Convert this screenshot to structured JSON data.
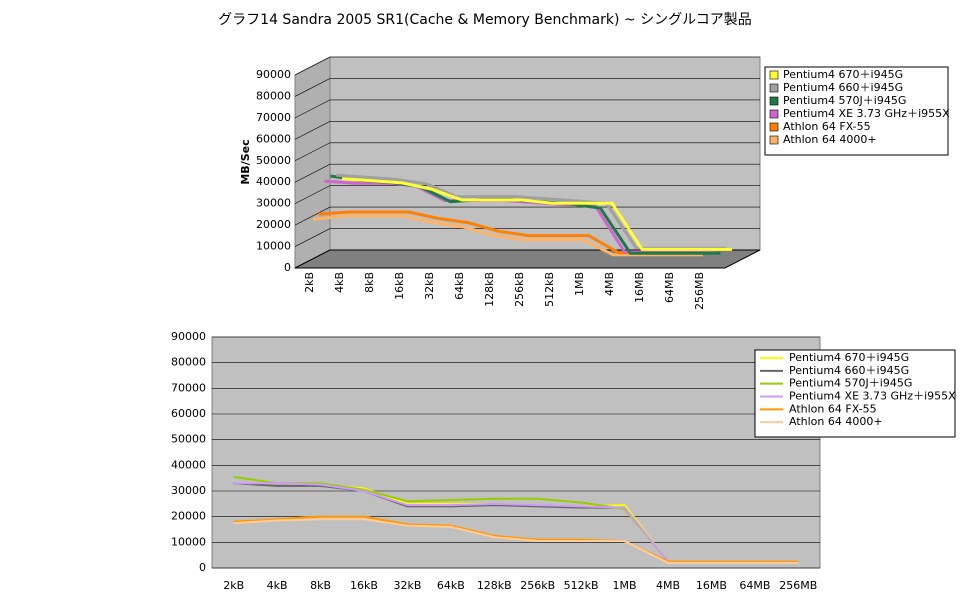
{
  "chart_data": [
    {
      "type": "line",
      "three_d": true,
      "title": "グラフ14  Sandra 2005 SR1(Cache & Memory Benchmark) ~ シングルコア製品",
      "y_label": "MB/Sec",
      "categories": [
        "2kB",
        "4kB",
        "8kB",
        "16kB",
        "32kB",
        "64kB",
        "128kB",
        "256kB",
        "512kB",
        "1MB",
        "4MB",
        "16MB",
        "64MB",
        "256MB"
      ],
      "ylim": [
        0,
        90000
      ],
      "yticks": [
        0,
        10000,
        20000,
        30000,
        40000,
        50000,
        60000,
        70000,
        80000,
        90000
      ],
      "grid": true,
      "series": [
        {
          "name": "Pentium4 670＋i945G",
          "color": "#ffff33",
          "values": [
            34000,
            33000,
            32000,
            29000,
            24000,
            24000,
            24000,
            22500,
            22500,
            22500,
            1000,
            1000,
            1000,
            1000
          ]
        },
        {
          "name": "Pentium4 660＋i945G",
          "color": "#a0a0a0",
          "values": [
            37000,
            36000,
            35000,
            33000,
            27000,
            27000,
            27000,
            26000,
            25000,
            24000,
            3000,
            3000,
            3000,
            3000
          ]
        },
        {
          "name": "Pentium4 570J＋i945G",
          "color": "#1f7a4a",
          "values": [
            38000,
            36000,
            35000,
            33000,
            26000,
            27000,
            27000,
            26000,
            25000,
            23000,
            2000,
            2000,
            2000,
            2000
          ]
        },
        {
          "name": "Pentium4 XE 3.73 GHz＋i955X",
          "color": "#cc66cc",
          "values": [
            37000,
            36000,
            36000,
            35000,
            28000,
            28000,
            28000,
            27000,
            26000,
            26000,
            4000,
            4000,
            4000,
            4000
          ]
        },
        {
          "name": "Athlon 64 FX-55",
          "color": "#ff8000",
          "values": [
            23000,
            24000,
            24000,
            24000,
            21000,
            19000,
            15000,
            13000,
            13000,
            13000,
            5000,
            5000,
            5000,
            5000
          ]
        },
        {
          "name": "Athlon 64 4000+",
          "color": "#ffb366",
          "values": [
            22000,
            23500,
            23500,
            23500,
            20500,
            18500,
            14500,
            12500,
            12500,
            12500,
            5500,
            5500,
            5500,
            5500
          ]
        }
      ]
    },
    {
      "type": "line",
      "three_d": false,
      "categories": [
        "2kB",
        "4kB",
        "8kB",
        "16kB",
        "32kB",
        "64kB",
        "128kB",
        "256kB",
        "512kB",
        "1MB",
        "4MB",
        "16MB",
        "64MB",
        "256MB"
      ],
      "ylim": [
        0,
        90000
      ],
      "yticks": [
        0,
        10000,
        20000,
        30000,
        40000,
        50000,
        60000,
        70000,
        80000,
        90000
      ],
      "grid": true,
      "series": [
        {
          "name": "Pentium4 670＋i945G",
          "color": "#ffff00",
          "values": [
            33000,
            33000,
            32500,
            31000,
            25000,
            25000,
            25000,
            24500,
            24000,
            24500,
            2500,
            2500,
            2500,
            2500
          ]
        },
        {
          "name": "Pentium4 660＋i945G",
          "color": "#666666",
          "values": [
            33000,
            32000,
            32000,
            30000,
            24000,
            24000,
            24500,
            24000,
            23500,
            23500,
            2500,
            2500,
            2500,
            2500
          ]
        },
        {
          "name": "Pentium4 570J＋i945G",
          "color": "#99cc00",
          "values": [
            35500,
            33000,
            33000,
            30500,
            26000,
            26500,
            27000,
            27000,
            25500,
            23000,
            2500,
            2500,
            2500,
            2500
          ]
        },
        {
          "name": "Pentium4 XE 3.73 GHz＋i955X",
          "color": "#cc99ff",
          "values": [
            33000,
            33000,
            32500,
            30000,
            24500,
            24500,
            25000,
            24500,
            24000,
            23500,
            2500,
            2500,
            2500,
            2500
          ]
        },
        {
          "name": "Athlon 64 FX-55",
          "color": "#ff9900",
          "values": [
            18000,
            19000,
            20000,
            20000,
            17000,
            16500,
            12500,
            11000,
            11000,
            10500,
            2500,
            2500,
            2500,
            2500
          ]
        },
        {
          "name": "Athlon 64 4000+",
          "color": "#ffcc99",
          "values": [
            17500,
            18500,
            19000,
            19000,
            16500,
            16000,
            12000,
            10500,
            10500,
            10500,
            2000,
            2000,
            2000,
            2000
          ]
        }
      ]
    }
  ]
}
